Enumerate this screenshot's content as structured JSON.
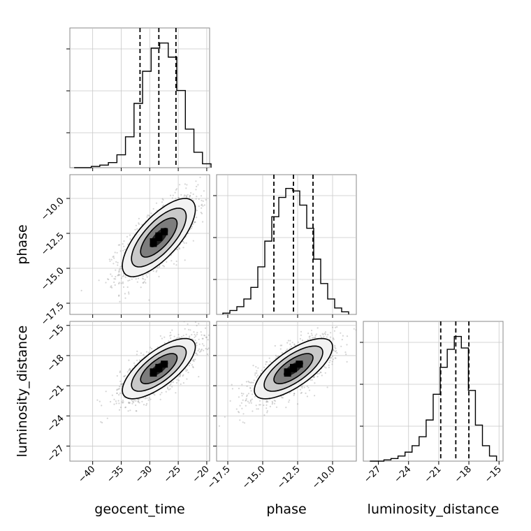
{
  "chart_data": {
    "type": "corner",
    "parameters": [
      "geocent_time",
      "phase",
      "luminosity_distance"
    ],
    "axes": {
      "geocent_time": {
        "range": [
          -44,
          -19.5
        ],
        "ticks": [
          -40,
          -35,
          -30,
          -25,
          -20
        ],
        "tick_labels": [
          "−40",
          "−35",
          "−30",
          "−25",
          "−20"
        ]
      },
      "phase": {
        "range": [
          -18.3,
          -8.3
        ],
        "ticks": [
          -17.5,
          -15.0,
          -12.5,
          -10.0
        ],
        "tick_labels": [
          "−17.5",
          "−15.0",
          "−12.5",
          "−10.0"
        ]
      },
      "luminosity_distance": {
        "range": [
          -28.5,
          -14.6
        ],
        "ticks": [
          -27,
          -24,
          -21,
          -18,
          -15
        ],
        "tick_labels": [
          "−27",
          "−24",
          "−21",
          "−18",
          "−15"
        ]
      }
    },
    "marginals": [
      {
        "param": "geocent_time",
        "quantiles": [
          -31.7,
          -28.4,
          -25.4
        ],
        "bins": [
          [
            -42.5,
            0.0
          ],
          [
            -41,
            0.0
          ],
          [
            -39.5,
            0.01
          ],
          [
            -38,
            0.02
          ],
          [
            -36.5,
            0.04
          ],
          [
            -35,
            0.1
          ],
          [
            -33.5,
            0.24
          ],
          [
            -32,
            0.5
          ],
          [
            -30.5,
            0.75
          ],
          [
            -29,
            0.93
          ],
          [
            -27.5,
            0.97
          ],
          [
            -26,
            0.86
          ],
          [
            -24.5,
            0.6
          ],
          [
            -23,
            0.3
          ],
          [
            -21.5,
            0.12
          ],
          [
            -20,
            0.03
          ]
        ]
      },
      {
        "param": "phase",
        "quantiles": [
          -14.2,
          -12.8,
          -11.4
        ],
        "bins": [
          [
            -17.6,
            0.01
          ],
          [
            -17.1,
            0.03
          ],
          [
            -16.6,
            0.06
          ],
          [
            -16.1,
            0.12
          ],
          [
            -15.6,
            0.21
          ],
          [
            -15.1,
            0.37
          ],
          [
            -14.6,
            0.57
          ],
          [
            -14.1,
            0.76
          ],
          [
            -13.6,
            0.91
          ],
          [
            -13.1,
            0.98
          ],
          [
            -12.6,
            0.96
          ],
          [
            -12.1,
            0.85
          ],
          [
            -11.6,
            0.67
          ],
          [
            -11.1,
            0.43
          ],
          [
            -10.6,
            0.24
          ],
          [
            -10.1,
            0.12
          ],
          [
            -9.6,
            0.05
          ],
          [
            -9.1,
            0.02
          ]
        ]
      },
      {
        "param": "luminosity_distance",
        "quantiles": [
          -20.8,
          -19.3,
          -18.0
        ],
        "bins": [
          [
            -27.5,
            0.0
          ],
          [
            -26.8,
            0.0
          ],
          [
            -26.1,
            0.01
          ],
          [
            -25.4,
            0.02
          ],
          [
            -24.7,
            0.04
          ],
          [
            -24.0,
            0.07
          ],
          [
            -23.3,
            0.12
          ],
          [
            -22.6,
            0.19
          ],
          [
            -21.9,
            0.32
          ],
          [
            -21.2,
            0.52
          ],
          [
            -20.5,
            0.73
          ],
          [
            -19.8,
            0.87
          ],
          [
            -19.1,
            0.97
          ],
          [
            -18.4,
            0.88
          ],
          [
            -17.7,
            0.55
          ],
          [
            -17.0,
            0.28
          ],
          [
            -16.3,
            0.12
          ],
          [
            -15.6,
            0.04
          ]
        ]
      }
    ],
    "joints": [
      {
        "x": "geocent_time",
        "y": "phase",
        "mean": [
          -28.4,
          -12.8
        ],
        "std": [
          3.2,
          1.4
        ],
        "rho": 0.72
      },
      {
        "x": "geocent_time",
        "y": "luminosity_distance",
        "mean": [
          -28.4,
          -19.3
        ],
        "std": [
          3.2,
          1.5
        ],
        "rho": 0.72
      },
      {
        "x": "phase",
        "y": "luminosity_distance",
        "mean": [
          -12.8,
          -19.3
        ],
        "std": [
          1.4,
          1.5
        ],
        "rho": 0.72
      }
    ],
    "contour_levels_sigma": [
      0.5,
      1.0,
      1.5,
      2.0
    ],
    "grid": true
  }
}
